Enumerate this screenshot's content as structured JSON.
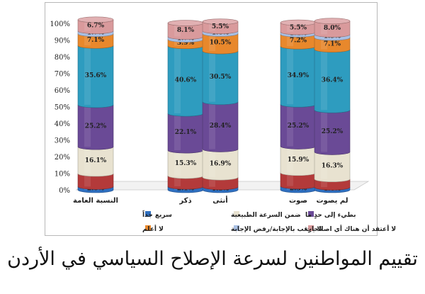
{
  "caption": "تقييم المواطنين لسرعة الإصلاح السياسي في الأردن",
  "chart_data": {
    "type": "bar",
    "stacked": true,
    "percent": true,
    "categories": [
      "النسبة العامة",
      "ذكر",
      "أنثى",
      "صوت",
      "لم يصوت"
    ],
    "y_ticks": [
      "0%",
      "10%",
      "20%",
      "30%",
      "40%",
      "50%",
      "60%",
      "70%",
      "80%",
      "90%",
      "100%"
    ],
    "ylim": [
      0,
      100
    ],
    "series": [
      {
        "name": "سريع جداً",
        "color": "#2e6fc0",
        "values": [
          2.0,
          2.1,
          1.8,
          2.3,
          1.6
        ]
      },
      {
        "name": "ضمن السرعة الطبيعية",
        "color": "#b33a3a",
        "values": [
          7.8,
          6.4,
          5.8,
          8.0,
          4.9
        ]
      },
      {
        "name": "بطيء إلى حدٍ ما",
        "color": "#e8e2d0",
        "values": [
          16.1,
          15.3,
          16.9,
          15.9,
          16.3
        ]
      },
      {
        "name": "لا أعلم",
        "color": "#6a4a96",
        "values": [
          25.2,
          22.1,
          28.4,
          25.2,
          25.2
        ]
      },
      {
        "name": "لا يرغب بالإجابة/رفض الإجابة",
        "color": "#2e9cbf",
        "values": [
          35.6,
          40.6,
          30.5,
          34.9,
          36.4
        ]
      },
      {
        "name": "لا أعتقد أن هناك أي اصلاحات",
        "color": "#e8882c",
        "values": [
          7.1,
          3.9,
          10.5,
          7.2,
          7.1
        ]
      },
      {
        "name": "s7",
        "color": "#a9c0e4",
        "values": [
          1.7,
          1.7,
          1.6,
          1.4,
          1.9
        ]
      },
      {
        "name": "s8",
        "color": "#d99a9c",
        "values": [
          6.7,
          8.1,
          5.5,
          5.5,
          8.0
        ]
      }
    ],
    "data_labels": [
      [
        "2.0%",
        null,
        "16.1%",
        "25.2%",
        "35.6%",
        "7.1%",
        "1.7%",
        "6.7%"
      ],
      [
        "2.1%",
        null,
        "15.3%",
        "22.1%",
        "40.6%",
        "3.9%",
        "1.7%",
        "8.1%"
      ],
      [
        "1.8%",
        null,
        "16.9%",
        "28.4%",
        "30.5%",
        "10.5%",
        "1.6%",
        "5.5%"
      ],
      [
        "2.3%",
        null,
        "15.9%",
        "25.2%",
        "34.9%",
        "7.2%",
        "1.4%",
        "5.5%"
      ],
      [
        "1.6%",
        null,
        "16.3%",
        "25.2%",
        "36.4%",
        "7.1%",
        "1.9%",
        "8.0%"
      ]
    ],
    "legend": [
      {
        "label": "سريع جداً",
        "color": "#2e6fc0"
      },
      {
        "label": "ضمن السرعة الطبيعية",
        "color": "#e8e2d0"
      },
      {
        "label": "بطيء إلى حدٍ ما",
        "color": "#6a4a96"
      },
      {
        "label": "لا أعلم",
        "color": "#e8882c"
      },
      {
        "label": "لا يرغب بالإجابة/رفض الإجابة",
        "color": "#a9c0e4"
      },
      {
        "label": "لا أعتقد أن هناك أي اصلاحات",
        "color": "#d99a9c"
      }
    ],
    "legend_position": "bottom",
    "grid": false,
    "style": "3d-cylinder"
  }
}
